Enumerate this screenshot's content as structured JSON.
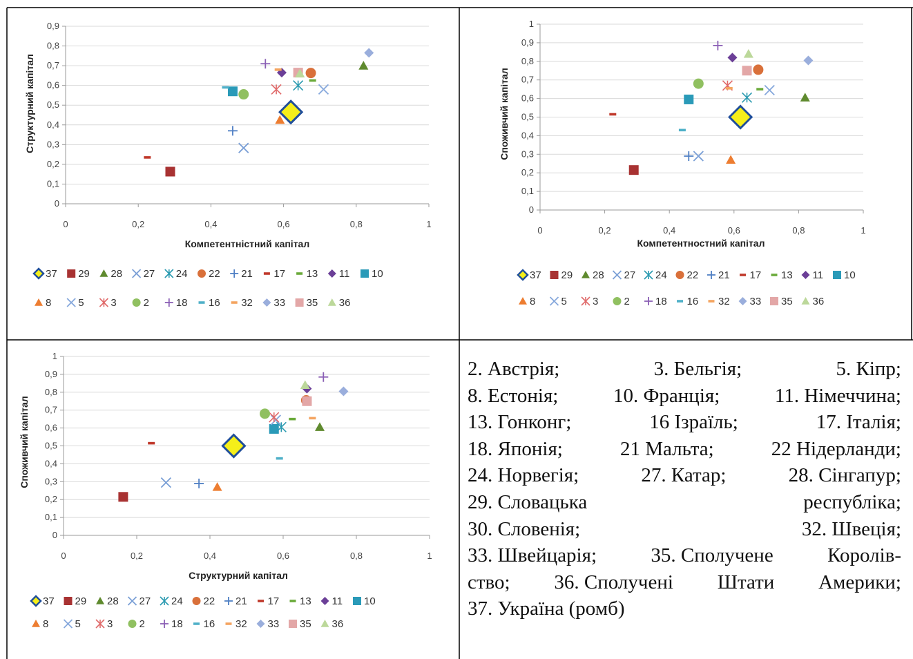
{
  "charts": [
    {
      "id": "top-left",
      "xlabel": "Компетентністний капітал",
      "ylabel": "Структурний капітал",
      "xticks": [
        "0",
        "0,2",
        "0,4",
        "0,6",
        "0,8",
        "1"
      ],
      "yticks": [
        "0",
        "0,1",
        "0,2",
        "0,3",
        "0,4",
        "0,5",
        "0,6",
        "0,7",
        "0,8",
        "0,9"
      ]
    },
    {
      "id": "top-right",
      "xlabel": "Компетентностний капітал",
      "ylabel": "Споживчий капітал",
      "xticks": [
        "0",
        "0,2",
        "0,4",
        "0,6",
        "0,8",
        "1"
      ],
      "yticks": [
        "0",
        "0,1",
        "0,2",
        "0,3",
        "0,4",
        "0,5",
        "0,6",
        "0,7",
        "0,8",
        "0,9",
        "1"
      ]
    },
    {
      "id": "bottom-left",
      "xlabel": "Структурний капітал",
      "ylabel": "Споживчий капітал",
      "xticks": [
        "0",
        "0,2",
        "0,4",
        "0,6",
        "0,8",
        "1"
      ],
      "yticks": [
        "0",
        "0,1",
        "0,2",
        "0,3",
        "0,4",
        "0,5",
        "0,6",
        "0,7",
        "0,8",
        "0,9",
        "1"
      ]
    }
  ],
  "legend": [
    "37",
    "29",
    "28",
    "27",
    "24",
    "22",
    "21",
    "17",
    "13",
    "11",
    "10",
    "8",
    "5",
    "3",
    "2",
    "18",
    "16",
    "32",
    "33",
    "35",
    "36"
  ],
  "description_lines": [
    [
      "2. Австрія;",
      "3. Бельгія;",
      "5. Кіпр;"
    ],
    [
      "8. Естонія;",
      "10. Франція;",
      "11. Німеччина;"
    ],
    [
      "13. Гонконг;",
      "16 Ізраїль;",
      "17. Італія;"
    ],
    [
      "18. Японія;",
      "21 Мальта;",
      "22 Нідерланди;"
    ],
    [
      "24. Норвегія;",
      "27. Катар;",
      "28. Сінгапур;"
    ],
    [
      "29. Словацька",
      "республіка;"
    ],
    [
      "30. Словенія;",
      "32. Швеція;"
    ],
    [
      "33. Швейцарія;",
      "35. Сполучене",
      "Королів-"
    ],
    [
      "ство;",
      "36. Сполучені",
      "Штати",
      "Америки;"
    ],
    [
      "37. Україна (ромб)"
    ]
  ],
  "chart_data": [
    {
      "type": "scatter",
      "xlabel": "Компетентністний капітал",
      "ylabel": "Структурний капітал",
      "xlim": [
        0,
        1
      ],
      "ylim": [
        0,
        0.9
      ],
      "series": [
        {
          "name": "37",
          "marker": "diamond-large",
          "color": "#1f4e9a",
          "fill": "#f5ef1a",
          "points": [
            [
              0.62,
              0.465
            ]
          ]
        },
        {
          "name": "29",
          "marker": "square",
          "color": "#a83232",
          "points": [
            [
              0.288,
              0.163
            ]
          ]
        },
        {
          "name": "28",
          "marker": "triangle",
          "color": "#5f8a2e",
          "points": [
            [
              0.82,
              0.7
            ]
          ]
        },
        {
          "name": "27",
          "marker": "x",
          "color": "#7a9fd6",
          "points": [
            [
              0.49,
              0.283
            ]
          ]
        },
        {
          "name": "24",
          "marker": "star",
          "color": "#2a9ab0",
          "points": [
            [
              0.64,
              0.6
            ]
          ]
        },
        {
          "name": "22",
          "marker": "circle",
          "color": "#d9703a",
          "points": [
            [
              0.675,
              0.663
            ]
          ]
        },
        {
          "name": "21",
          "marker": "plus",
          "color": "#4f7fc4",
          "points": [
            [
              0.46,
              0.37
            ]
          ]
        },
        {
          "name": "17",
          "marker": "dash",
          "color": "#c0392b",
          "points": [
            [
              0.225,
              0.235
            ]
          ]
        },
        {
          "name": "13",
          "marker": "dash",
          "color": "#6aaa3a",
          "points": [
            [
              0.68,
              0.625
            ]
          ]
        },
        {
          "name": "11",
          "marker": "diamond",
          "color": "#6b3f97",
          "points": [
            [
              0.595,
              0.665
            ]
          ]
        },
        {
          "name": "10",
          "marker": "square",
          "color": "#2a9ab8",
          "points": [
            [
              0.46,
              0.57
            ]
          ]
        },
        {
          "name": "8",
          "marker": "triangle",
          "color": "#ed7d31",
          "points": [
            [
              0.59,
              0.425
            ]
          ]
        },
        {
          "name": "5",
          "marker": "x",
          "color": "#86a8dc",
          "points": [
            [
              0.71,
              0.58
            ]
          ]
        },
        {
          "name": "3",
          "marker": "star",
          "color": "#e06a6a",
          "points": [
            [
              0.58,
              0.58
            ]
          ]
        },
        {
          "name": "2",
          "marker": "circle",
          "color": "#90c060",
          "points": [
            [
              0.49,
              0.555
            ]
          ]
        },
        {
          "name": "18",
          "marker": "plus",
          "color": "#8a5fb5",
          "points": [
            [
              0.55,
              0.71
            ]
          ]
        },
        {
          "name": "16",
          "marker": "dash",
          "color": "#4fb0c8",
          "points": [
            [
              0.44,
              0.59
            ]
          ]
        },
        {
          "name": "32",
          "marker": "dash",
          "color": "#f4a460",
          "points": [
            [
              0.585,
              0.68
            ]
          ]
        },
        {
          "name": "33",
          "marker": "diamond",
          "color": "#9aaedc",
          "points": [
            [
              0.835,
              0.765
            ]
          ]
        },
        {
          "name": "35",
          "marker": "square",
          "color": "#e3a7a7",
          "points": [
            [
              0.64,
              0.665
            ]
          ]
        },
        {
          "name": "36",
          "marker": "triangle",
          "color": "#bcd89a",
          "points": [
            [
              0.645,
              0.66
            ]
          ]
        }
      ]
    },
    {
      "type": "scatter",
      "xlabel": "Компетентностний капітал",
      "ylabel": "Споживчий капітал",
      "xlim": [
        0,
        1
      ],
      "ylim": [
        0,
        1
      ],
      "series": [
        {
          "name": "37",
          "marker": "diamond-large",
          "color": "#1f4e9a",
          "fill": "#f5ef1a",
          "points": [
            [
              0.62,
              0.5
            ]
          ]
        },
        {
          "name": "29",
          "marker": "square",
          "color": "#a83232",
          "points": [
            [
              0.29,
              0.215
            ]
          ]
        },
        {
          "name": "28",
          "marker": "triangle",
          "color": "#5f8a2e",
          "points": [
            [
              0.82,
              0.605
            ]
          ]
        },
        {
          "name": "27",
          "marker": "x",
          "color": "#7a9fd6",
          "points": [
            [
              0.49,
              0.29
            ]
          ]
        },
        {
          "name": "24",
          "marker": "star",
          "color": "#2a9ab0",
          "points": [
            [
              0.64,
              0.605
            ]
          ]
        },
        {
          "name": "22",
          "marker": "circle",
          "color": "#d9703a",
          "points": [
            [
              0.675,
              0.755
            ]
          ]
        },
        {
          "name": "21",
          "marker": "plus",
          "color": "#4f7fc4",
          "points": [
            [
              0.46,
              0.29
            ]
          ]
        },
        {
          "name": "17",
          "marker": "dash",
          "color": "#c0392b",
          "points": [
            [
              0.225,
              0.515
            ]
          ]
        },
        {
          "name": "13",
          "marker": "dash",
          "color": "#6aaa3a",
          "points": [
            [
              0.68,
              0.65
            ]
          ]
        },
        {
          "name": "11",
          "marker": "diamond",
          "color": "#6b3f97",
          "points": [
            [
              0.595,
              0.82
            ]
          ]
        },
        {
          "name": "10",
          "marker": "square",
          "color": "#2a9ab8",
          "points": [
            [
              0.46,
              0.595
            ]
          ]
        },
        {
          "name": "8",
          "marker": "triangle",
          "color": "#ed7d31",
          "points": [
            [
              0.59,
              0.27
            ]
          ]
        },
        {
          "name": "5",
          "marker": "x",
          "color": "#86a8dc",
          "points": [
            [
              0.71,
              0.645
            ]
          ]
        },
        {
          "name": "3",
          "marker": "star",
          "color": "#e06a6a",
          "points": [
            [
              0.58,
              0.67
            ]
          ]
        },
        {
          "name": "2",
          "marker": "circle",
          "color": "#90c060",
          "points": [
            [
              0.49,
              0.68
            ]
          ]
        },
        {
          "name": "18",
          "marker": "plus",
          "color": "#8a5fb5",
          "points": [
            [
              0.55,
              0.885
            ]
          ]
        },
        {
          "name": "16",
          "marker": "dash",
          "color": "#4fb0c8",
          "points": [
            [
              0.44,
              0.43
            ]
          ]
        },
        {
          "name": "32",
          "marker": "dash",
          "color": "#f4a460",
          "points": [
            [
              0.585,
              0.655
            ]
          ]
        },
        {
          "name": "33",
          "marker": "diamond",
          "color": "#9aaedc",
          "points": [
            [
              0.83,
              0.805
            ]
          ]
        },
        {
          "name": "35",
          "marker": "square",
          "color": "#e3a7a7",
          "points": [
            [
              0.64,
              0.75
            ]
          ]
        },
        {
          "name": "36",
          "marker": "triangle",
          "color": "#bcd89a",
          "points": [
            [
              0.645,
              0.84
            ]
          ]
        }
      ]
    },
    {
      "type": "scatter",
      "xlabel": "Структурний капітал",
      "ylabel": "Споживчий капітал",
      "xlim": [
        0,
        1
      ],
      "ylim": [
        0,
        1
      ],
      "series": [
        {
          "name": "37",
          "marker": "diamond-large",
          "color": "#1f4e9a",
          "fill": "#f5ef1a",
          "points": [
            [
              0.465,
              0.5
            ]
          ]
        },
        {
          "name": "29",
          "marker": "square",
          "color": "#a83232",
          "points": [
            [
              0.163,
              0.215
            ]
          ]
        },
        {
          "name": "28",
          "marker": "triangle",
          "color": "#5f8a2e",
          "points": [
            [
              0.7,
              0.605
            ]
          ]
        },
        {
          "name": "27",
          "marker": "x",
          "color": "#7a9fd6",
          "points": [
            [
              0.28,
              0.295
            ]
          ]
        },
        {
          "name": "24",
          "marker": "star",
          "color": "#2a9ab0",
          "points": [
            [
              0.595,
              0.605
            ]
          ]
        },
        {
          "name": "22",
          "marker": "circle",
          "color": "#d9703a",
          "points": [
            [
              0.663,
              0.755
            ]
          ]
        },
        {
          "name": "21",
          "marker": "plus",
          "color": "#4f7fc4",
          "points": [
            [
              0.37,
              0.29
            ]
          ]
        },
        {
          "name": "17",
          "marker": "dash",
          "color": "#c0392b",
          "points": [
            [
              0.24,
              0.515
            ]
          ]
        },
        {
          "name": "13",
          "marker": "dash",
          "color": "#6aaa3a",
          "points": [
            [
              0.625,
              0.65
            ]
          ]
        },
        {
          "name": "11",
          "marker": "diamond",
          "color": "#6b3f97",
          "points": [
            [
              0.665,
              0.82
            ]
          ]
        },
        {
          "name": "10",
          "marker": "square",
          "color": "#2a9ab8",
          "points": [
            [
              0.575,
              0.595
            ]
          ]
        },
        {
          "name": "8",
          "marker": "triangle",
          "color": "#ed7d31",
          "points": [
            [
              0.42,
              0.27
            ]
          ]
        },
        {
          "name": "5",
          "marker": "x",
          "color": "#86a8dc",
          "points": [
            [
              0.58,
              0.645
            ]
          ]
        },
        {
          "name": "3",
          "marker": "star",
          "color": "#e06a6a",
          "points": [
            [
              0.575,
              0.66
            ]
          ]
        },
        {
          "name": "2",
          "marker": "circle",
          "color": "#90c060",
          "points": [
            [
              0.55,
              0.68
            ]
          ]
        },
        {
          "name": "18",
          "marker": "plus",
          "color": "#8a5fb5",
          "points": [
            [
              0.71,
              0.885
            ]
          ]
        },
        {
          "name": "16",
          "marker": "dash",
          "color": "#4fb0c8",
          "points": [
            [
              0.59,
              0.43
            ]
          ]
        },
        {
          "name": "32",
          "marker": "dash",
          "color": "#f4a460",
          "points": [
            [
              0.68,
              0.655
            ]
          ]
        },
        {
          "name": "33",
          "marker": "diamond",
          "color": "#9aaedc",
          "points": [
            [
              0.765,
              0.805
            ]
          ]
        },
        {
          "name": "35",
          "marker": "square",
          "color": "#e3a7a7",
          "points": [
            [
              0.665,
              0.75
            ]
          ]
        },
        {
          "name": "36",
          "marker": "triangle",
          "color": "#bcd89a",
          "points": [
            [
              0.66,
              0.84
            ]
          ]
        }
      ]
    }
  ]
}
